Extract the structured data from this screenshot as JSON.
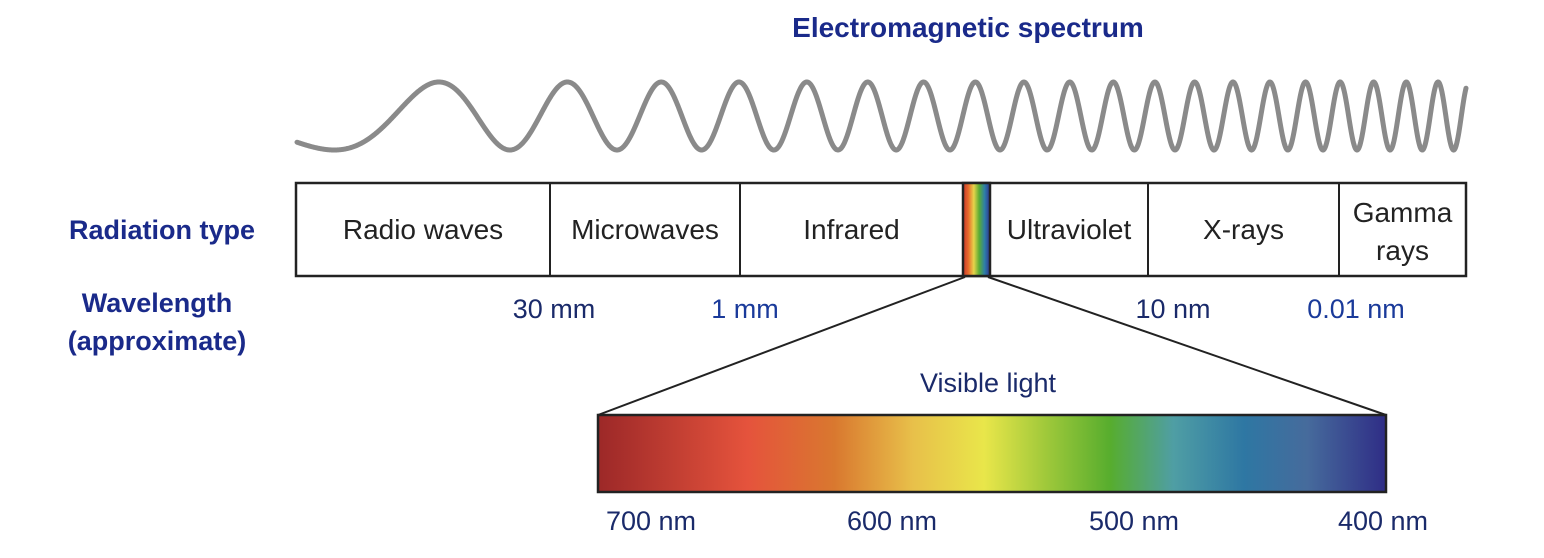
{
  "title": "Electromagnetic spectrum",
  "labels": {
    "radiation_type": "Radiation type",
    "wavelength_line1": "Wavelength",
    "wavelength_line2": "(approximate)"
  },
  "radiation_types": [
    {
      "label": "Radio waves"
    },
    {
      "label": "Microwaves"
    },
    {
      "label": "Infrared"
    },
    {
      "label": "Ultraviolet"
    },
    {
      "label": "X-rays"
    },
    {
      "label": "Gamma",
      "label2": "rays"
    }
  ],
  "wavelengths": [
    "30 mm",
    "1 mm",
    "10 nm",
    "0.01 nm"
  ],
  "visible": {
    "title": "Visible light",
    "ticks": [
      "700 nm",
      "600 nm",
      "500 nm",
      "400 nm"
    ]
  },
  "colors": {
    "heading": "#1a2a8a",
    "wave": "#8a8a8a",
    "border": "#222222"
  }
}
